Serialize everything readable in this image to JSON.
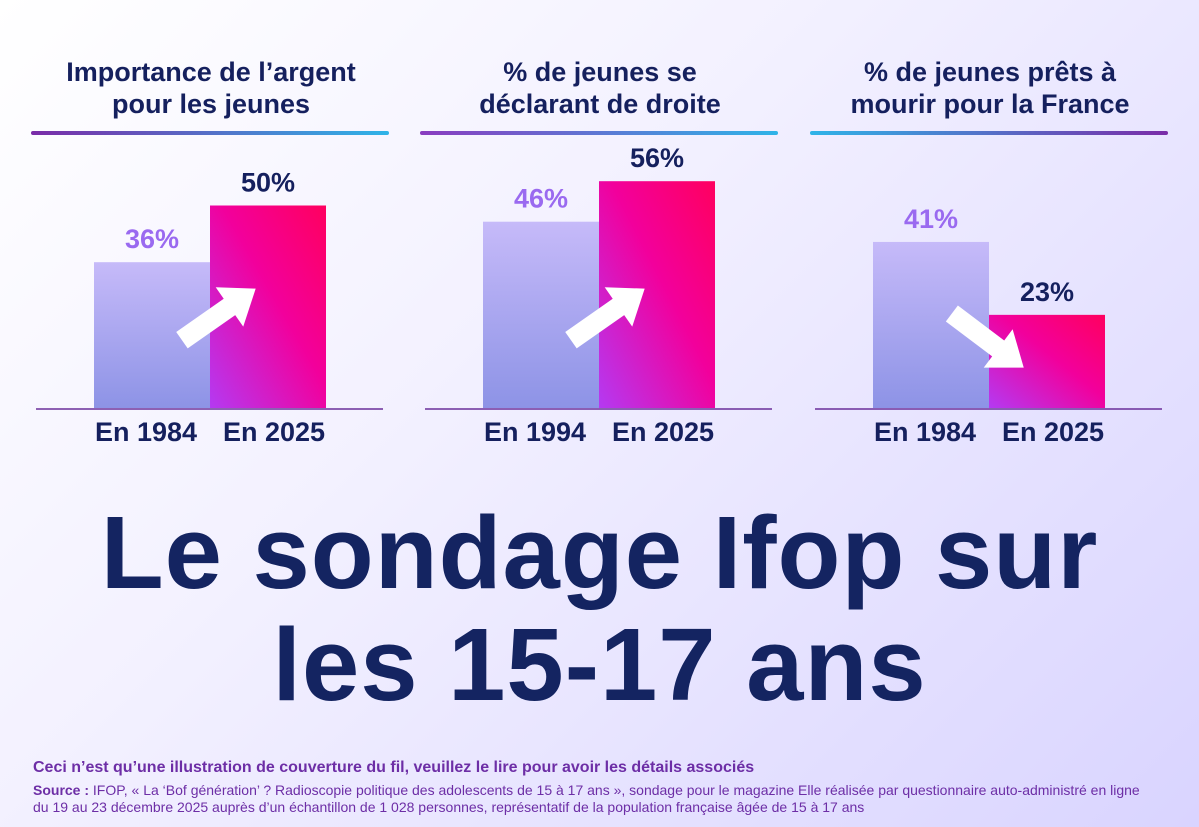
{
  "colors": {
    "navy": "#15205e",
    "old_bar_top": "#c4b8fb",
    "old_bar_bottom": "#8f94e8",
    "new_bar_top": "#f2008e",
    "new_bar_bottom": "#c02cf0",
    "old_label": "#9a6af0",
    "axis": "#6a2f9a",
    "note": "#6d2ea6"
  },
  "chart_data": [
    {
      "type": "bar",
      "title": "Importance de l’argent pour les jeunes",
      "categories": [
        "En 1984",
        "En 2025"
      ],
      "values": [
        36,
        50
      ],
      "data_labels": [
        "36%",
        "50%"
      ],
      "trend": "up",
      "ylim": [
        0,
        60
      ]
    },
    {
      "type": "bar",
      "title": "% de jeunes se déclarant de droite",
      "categories": [
        "En 1994",
        "En 2025"
      ],
      "values": [
        46,
        56
      ],
      "data_labels": [
        "46%",
        "56%"
      ],
      "trend": "up",
      "ylim": [
        0,
        60
      ]
    },
    {
      "type": "bar",
      "title": "% de jeunes prêts à mourir pour la France",
      "categories": [
        "En 1984",
        "En 2025"
      ],
      "values": [
        41,
        23
      ],
      "data_labels": [
        "41%",
        "23%"
      ],
      "trend": "down",
      "ylim": [
        0,
        60
      ]
    }
  ],
  "panels": [
    {
      "title_line1": "Importance de l’argent",
      "title_line2": "pour les jeunes"
    },
    {
      "title_line1": "% de jeunes se",
      "title_line2": "déclarant de droite"
    },
    {
      "title_line1": "% de jeunes prêts à",
      "title_line2": "mourir pour la France"
    }
  ],
  "headline": {
    "line1": "Le sondage Ifop sur",
    "line2": "les 15-17 ans"
  },
  "note": "Ceci n’est qu’une illustration de couverture du fil, veuillez le lire pour avoir les détails associés",
  "source": {
    "label": "Source :",
    "line1": " IFOP, « La ‘Bof génération’ ? Radioscopie politique des adolescents de 15 à 17 ans », sondage pour le magazine Elle réalisée par questionnaire auto-administré en ligne",
    "line2": "du 19 au 23 décembre 2025 auprès d’un échantillon de 1 028 personnes, représentatif de la population française âgée de 15 à 17 ans"
  }
}
